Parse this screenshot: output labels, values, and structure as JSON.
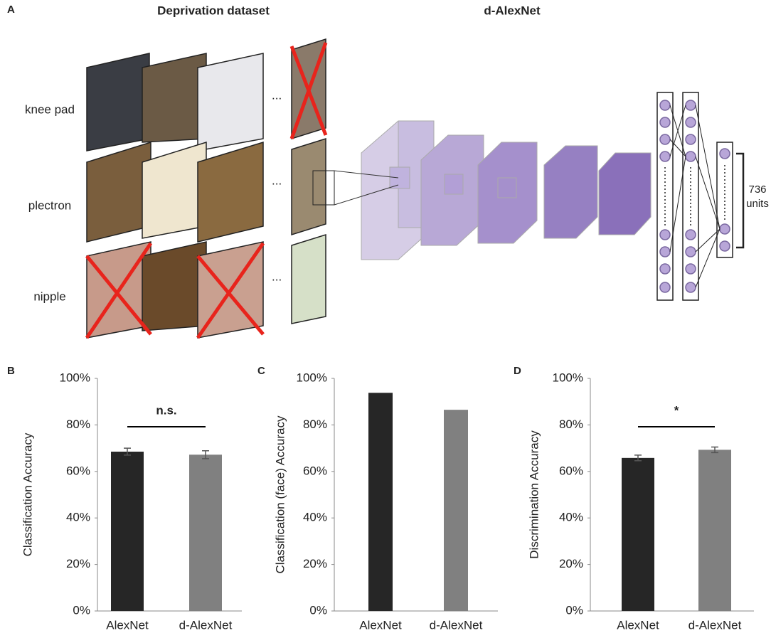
{
  "panel_a": {
    "label": "A",
    "dataset_title": "Deprivation dataset",
    "network_title": "d-AlexNet",
    "rows": [
      "knee pad",
      "plectron",
      "nipple"
    ],
    "ellipsis": "...",
    "units_count": "736",
    "units_word": "units"
  },
  "chart_data": [
    {
      "type": "bar",
      "panel": "B",
      "ylabel": "Classification Accuracy",
      "categories": [
        "AlexNet",
        "d-AlexNet"
      ],
      "values": [
        68.5,
        67.2
      ],
      "errors": [
        1.5,
        1.7
      ],
      "colors": [
        "#262626",
        "#808080"
      ],
      "ylim": [
        0,
        100
      ],
      "yticks": [
        {
          "value": 0,
          "label": "0%"
        },
        {
          "value": 20,
          "label": "20%"
        },
        {
          "value": 40,
          "label": "40%"
        },
        {
          "value": 60,
          "label": "60%"
        },
        {
          "value": 80,
          "label": "80%"
        },
        {
          "value": 100,
          "label": "100%"
        }
      ],
      "significance": "n.s."
    },
    {
      "type": "bar",
      "panel": "C",
      "ylabel": "Classification (face) Accuracy",
      "categories": [
        "AlexNet",
        "d-AlexNet"
      ],
      "values": [
        93.8,
        86.5
      ],
      "colors": [
        "#262626",
        "#808080"
      ],
      "ylim": [
        0,
        100
      ],
      "yticks": [
        {
          "value": 0,
          "label": "0%"
        },
        {
          "value": 20,
          "label": "20%"
        },
        {
          "value": 40,
          "label": "40%"
        },
        {
          "value": 60,
          "label": "60%"
        },
        {
          "value": 80,
          "label": "80%"
        },
        {
          "value": 100,
          "label": "100%"
        }
      ]
    },
    {
      "type": "bar",
      "panel": "D",
      "ylabel": "Discrimination Accuracy",
      "categories": [
        "AlexNet",
        "d-AlexNet"
      ],
      "values": [
        65.8,
        69.3
      ],
      "errors": [
        1.2,
        1.2
      ],
      "colors": [
        "#262626",
        "#808080"
      ],
      "ylim": [
        0,
        100
      ],
      "yticks": [
        {
          "value": 0,
          "label": "0%"
        },
        {
          "value": 20,
          "label": "20%"
        },
        {
          "value": 40,
          "label": "40%"
        },
        {
          "value": 60,
          "label": "60%"
        },
        {
          "value": 80,
          "label": "80%"
        },
        {
          "value": 100,
          "label": "100%"
        }
      ],
      "significance": "*"
    }
  ]
}
